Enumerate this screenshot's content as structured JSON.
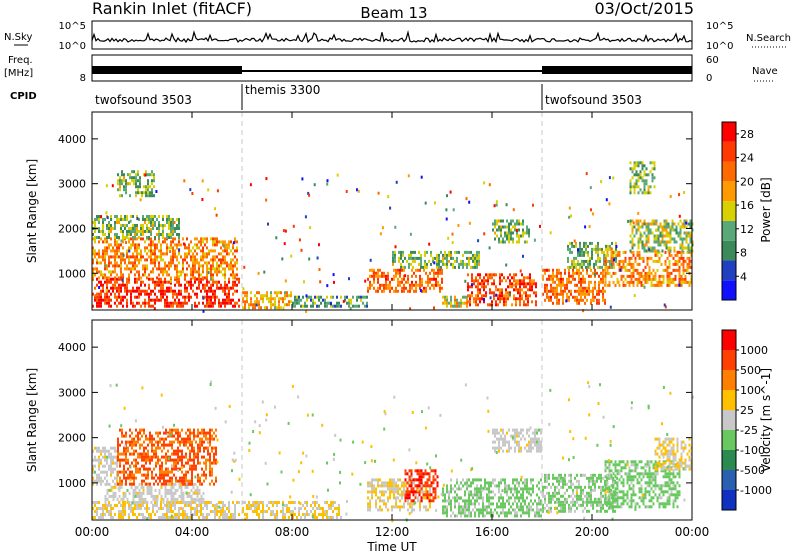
{
  "header": {
    "station": "Rankin Inlet (fitACF)",
    "beam": "Beam 13",
    "date": "03/Oct/2015"
  },
  "nsky_panel": {
    "left_label": "N.Sky",
    "left_ticks": [
      "10^5",
      "10^0"
    ],
    "right_label": "N.Search",
    "right_ticks": [
      "10^5",
      "10^0"
    ],
    "right_line_style": "dotted"
  },
  "freq_panel": {
    "left_label_1": "Freq.",
    "left_label_2": "[MHz]",
    "left_ticks": [
      "8"
    ],
    "right_label": "Nave",
    "right_ticks": [
      "60",
      "0"
    ],
    "right_line_style": "dotted"
  },
  "cpid": {
    "label": "CPID",
    "segments": [
      {
        "name": "twofsound 3503",
        "start_hour": 0
      },
      {
        "name": "themis 3300",
        "start_hour": 6
      },
      {
        "name": "twofsound 3503",
        "start_hour": 18
      }
    ]
  },
  "colors": {
    "power_scale": [
      "#1010ff",
      "#2040c0",
      "#3c8a5a",
      "#5aa878",
      "#d8d000",
      "#ff9a00",
      "#ff6a00",
      "#ff3a00",
      "#ff0000"
    ],
    "velocity_scale": [
      "#1030c0",
      "#2a60b0",
      "#2a8a50",
      "#6ac860",
      "#c8c8c8",
      "#ffc000",
      "#ff8000",
      "#ff4000",
      "#ff0000"
    ],
    "mode_change_line": "#c8c8c8"
  },
  "chart_data": [
    {
      "type": "heatmap",
      "title": "Beam 13",
      "xlabel": "Time UT",
      "ylabel": "Slant Range [km]",
      "x_ticks": [
        "00:00",
        "04:00",
        "08:00",
        "12:00",
        "16:00",
        "20:00",
        "00:00"
      ],
      "x_tick_hours": [
        0,
        4,
        8,
        12,
        16,
        20,
        24
      ],
      "xlim": [
        0,
        24
      ],
      "y_ticks": [
        1000,
        2000,
        3000,
        4000
      ],
      "ylim": [
        180,
        4600
      ],
      "mode_change_hours": [
        6,
        18
      ],
      "colorbar": {
        "label": "Power [dB]",
        "tick_labels": [
          "4",
          "8",
          "12",
          "16",
          "20",
          "24",
          "28"
        ],
        "tick_values": [
          4,
          8,
          12,
          16,
          20,
          24,
          28
        ],
        "range": [
          0,
          30
        ]
      },
      "regions": [
        {
          "t": [
            0.0,
            5.9
          ],
          "r": [
            250,
            900
          ],
          "v": 26
        },
        {
          "t": [
            0.0,
            5.8
          ],
          "r": [
            900,
            1800
          ],
          "v": 20
        },
        {
          "t": [
            0.0,
            3.5
          ],
          "r": [
            1800,
            2300
          ],
          "v": 12
        },
        {
          "t": [
            1.0,
            2.5
          ],
          "r": [
            2700,
            3300
          ],
          "v": 12
        },
        {
          "t": [
            6.0,
            8.0
          ],
          "r": [
            250,
            600
          ],
          "v": 18
        },
        {
          "t": [
            8.0,
            11.0
          ],
          "r": [
            250,
            500
          ],
          "v": 10
        },
        {
          "t": [
            11.0,
            14.0
          ],
          "r": [
            600,
            1100
          ],
          "v": 22
        },
        {
          "t": [
            12.0,
            15.5
          ],
          "r": [
            1100,
            1500
          ],
          "v": 12
        },
        {
          "t": [
            14.0,
            15.0
          ],
          "r": [
            250,
            500
          ],
          "v": 16
        },
        {
          "t": [
            15.0,
            17.8
          ],
          "r": [
            300,
            1000
          ],
          "v": 24
        },
        {
          "t": [
            16.0,
            17.5
          ],
          "r": [
            1700,
            2200
          ],
          "v": 12
        },
        {
          "t": [
            18.0,
            20.5
          ],
          "r": [
            350,
            1100
          ],
          "v": 22
        },
        {
          "t": [
            19.0,
            21.0
          ],
          "r": [
            1100,
            1700
          ],
          "v": 12
        },
        {
          "t": [
            20.5,
            24.0
          ],
          "r": [
            700,
            1500
          ],
          "v": 20
        },
        {
          "t": [
            21.5,
            24.0
          ],
          "r": [
            1500,
            2200
          ],
          "v": 14
        },
        {
          "t": [
            21.5,
            22.5
          ],
          "r": [
            2800,
            3500
          ],
          "v": 12
        }
      ]
    },
    {
      "type": "heatmap",
      "title": "Beam 13",
      "xlabel": "Time UT",
      "ylabel": "Slant Range [km]",
      "x_ticks": [
        "00:00",
        "04:00",
        "08:00",
        "12:00",
        "16:00",
        "20:00",
        "00:00"
      ],
      "x_tick_hours": [
        0,
        4,
        8,
        12,
        16,
        20,
        24
      ],
      "xlim": [
        0,
        24
      ],
      "y_ticks": [
        1000,
        2000,
        3000,
        4000
      ],
      "ylim": [
        180,
        4600
      ],
      "mode_change_hours": [
        6,
        18
      ],
      "colorbar": {
        "label": "Velocity [m s^-1]",
        "tick_labels": [
          "1000",
          "500",
          "100",
          "25",
          "-25",
          "-100",
          "-500",
          "-1000"
        ],
        "tick_values": [
          1000,
          500,
          100,
          25,
          -25,
          -100,
          -500,
          -1000
        ],
        "range": [
          -1200,
          1200
        ]
      },
      "regions": [
        {
          "t": [
            0.0,
            5.9
          ],
          "r": [
            250,
            600
          ],
          "v": 120
        },
        {
          "t": [
            0.5,
            4.5
          ],
          "r": [
            600,
            1000
          ],
          "v": 10
        },
        {
          "t": [
            0.0,
            1.0
          ],
          "r": [
            1000,
            1800
          ],
          "v": 10
        },
        {
          "t": [
            1.0,
            5.0
          ],
          "r": [
            1000,
            2200
          ],
          "v": 700
        },
        {
          "t": [
            6.0,
            10.0
          ],
          "r": [
            250,
            600
          ],
          "v": 150
        },
        {
          "t": [
            11.0,
            13.5
          ],
          "r": [
            400,
            1100
          ],
          "v": 120
        },
        {
          "t": [
            12.5,
            13.8
          ],
          "r": [
            600,
            1300
          ],
          "v": 900
        },
        {
          "t": [
            14.0,
            18.0
          ],
          "r": [
            300,
            1100
          ],
          "v": -200
        },
        {
          "t": [
            16.0,
            18.0
          ],
          "r": [
            1700,
            2200
          ],
          "v": 10
        },
        {
          "t": [
            18.0,
            21.0
          ],
          "r": [
            350,
            1200
          ],
          "v": -180
        },
        {
          "t": [
            20.5,
            23.5
          ],
          "r": [
            500,
            1500
          ],
          "v": -250
        },
        {
          "t": [
            22.5,
            24.0
          ],
          "r": [
            1300,
            2000
          ],
          "v": 150
        }
      ]
    }
  ]
}
